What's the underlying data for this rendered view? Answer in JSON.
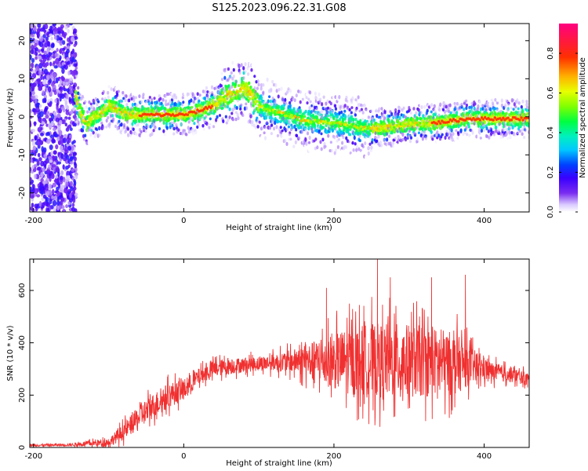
{
  "title": "S125.2023.096.22.31.G08",
  "chart_data": [
    {
      "type": "heatmap",
      "xlabel": "Height of straight line (km)",
      "ylabel": "Frequency (Hz)",
      "xlim": [
        -205,
        460
      ],
      "ylim": [
        -25,
        24.5
      ],
      "x_ticks": [
        -200,
        0,
        200,
        400
      ],
      "y_ticks": [
        -20,
        -10,
        0,
        10,
        20
      ],
      "grid": false,
      "colorbar": {
        "label": "Normalized spectral amplitude",
        "range": [
          0,
          0.95
        ],
        "ticks": [
          0.0,
          0.2,
          0.4,
          0.6,
          0.8
        ]
      },
      "ridge": {
        "x": [
          -150,
          -140,
          -130,
          -120,
          -110,
          -100,
          -90,
          -80,
          -70,
          -50,
          0,
          20,
          40,
          60,
          80,
          90,
          100,
          110,
          130,
          160,
          200,
          240,
          260,
          300,
          340,
          380,
          420,
          460
        ],
        "freq": [
          10,
          2,
          -2,
          0,
          1,
          3,
          2,
          1,
          0.5,
          0.5,
          0.5,
          1.5,
          3,
          6,
          7.5,
          6,
          3,
          2,
          1,
          -1,
          -1.5,
          -3,
          -3,
          -2,
          -1.5,
          -0.5,
          -0.5,
          -0.5
        ]
      }
    },
    {
      "type": "line",
      "xlabel": "Height of straight line (km)",
      "ylabel": "SNR (10 * v/v)",
      "xlim": [
        -205,
        460
      ],
      "ylim": [
        0,
        720
      ],
      "x_ticks": [
        -200,
        0,
        200,
        400
      ],
      "y_ticks": [
        0,
        200,
        400,
        600
      ],
      "grid": false,
      "color": "#f03030",
      "envelope": {
        "x": [
          -205,
          -150,
          -100,
          -80,
          -50,
          -20,
          0,
          20,
          40,
          60,
          80,
          100,
          120,
          150,
          190,
          220,
          250,
          280,
          320,
          360,
          390,
          410,
          440,
          460
        ],
        "mean": [
          8,
          10,
          20,
          60,
          140,
          200,
          220,
          270,
          300,
          310,
          315,
          320,
          325,
          330,
          330,
          330,
          330,
          330,
          330,
          320,
          310,
          290,
          275,
          260
        ],
        "spread": [
          5,
          6,
          20,
          40,
          60,
          60,
          50,
          40,
          40,
          40,
          35,
          35,
          40,
          60,
          120,
          160,
          180,
          180,
          170,
          150,
          70,
          45,
          35,
          30
        ]
      },
      "spikes": [
        {
          "x": 190,
          "y": 610
        },
        {
          "x": 258,
          "y": 720
        },
        {
          "x": 275,
          "y": 650
        },
        {
          "x": 330,
          "y": 650
        },
        {
          "x": 375,
          "y": 660
        }
      ]
    }
  ]
}
